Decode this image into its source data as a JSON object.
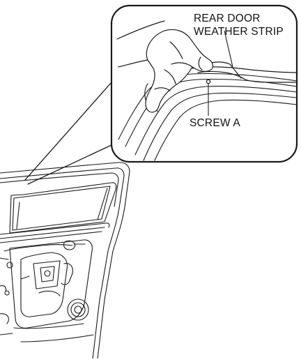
{
  "labels": {
    "weather_strip_line1": "REAR DOOR",
    "weather_strip_line2": "WEATHER STRIP",
    "screw": "SCREW A"
  },
  "colors": {
    "line": "#1a1a1a",
    "background": "#ffffff"
  }
}
